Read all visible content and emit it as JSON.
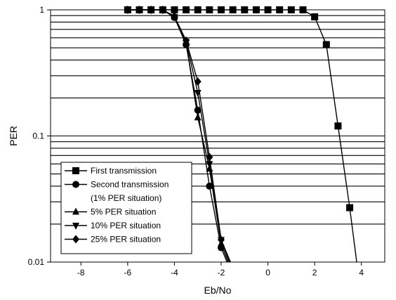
{
  "chart_data": {
    "type": "line",
    "xlabel": "Eb/No",
    "ylabel": "PER",
    "xlim": [
      -9.3,
      5
    ],
    "ylim": [
      0.01,
      1
    ],
    "yscale": "log",
    "xticks": [
      -8,
      -6,
      -4,
      -2,
      0,
      2,
      4
    ],
    "xtick_labels": [
      "-8",
      "-6",
      "-4",
      "-2",
      "0",
      "2",
      "4"
    ],
    "yticks": [
      0.01,
      0.1,
      1
    ],
    "ytick_labels": [
      "0.01",
      "0.1",
      "1"
    ],
    "grid": "horizontal, log minor",
    "legend": {
      "position": "bottom-left",
      "entries": [
        {
          "text": "First transmission",
          "marker": "square"
        },
        {
          "text": "Second transmission",
          "marker": "circle"
        },
        {
          "text": "(1% PER situation)",
          "marker": "none"
        },
        {
          "text": "5% PER situation",
          "marker": "triangle-up"
        },
        {
          "text": "10% PER situation",
          "marker": "triangle-down"
        },
        {
          "text": "25% PER situation",
          "marker": "diamond"
        }
      ]
    },
    "series": [
      {
        "name": "First transmission",
        "marker": "square",
        "x": [
          -6,
          -5.5,
          -5,
          -4.5,
          -4,
          -3.5,
          -3,
          -2.5,
          -2,
          -1.5,
          -1,
          -0.5,
          0,
          0.5,
          1,
          1.5,
          2,
          2.5,
          3,
          3.5,
          3.8
        ],
        "y": [
          1,
          1,
          1,
          1,
          1,
          1,
          1,
          1,
          1,
          1,
          1,
          1,
          1,
          1,
          1,
          1,
          0.88,
          0.53,
          0.12,
          0.027,
          0.01
        ]
      },
      {
        "name": "Second transmission (1% PER situation)",
        "marker": "circle",
        "x": [
          -6,
          -5.5,
          -5,
          -4.5,
          -4,
          -3.5,
          -3,
          -2.5,
          -2,
          -1.75
        ],
        "y": [
          1,
          1,
          1,
          1,
          0.87,
          0.53,
          0.16,
          0.04,
          0.013,
          0.01
        ]
      },
      {
        "name": "5% PER situation",
        "marker": "triangle-up",
        "x": [
          -6,
          -5.5,
          -5,
          -4.5,
          -4,
          -3.5,
          -3,
          -2.5,
          -2,
          -1.7
        ],
        "y": [
          1,
          1,
          1,
          1,
          0.88,
          0.55,
          0.14,
          0.055,
          0.014,
          0.01
        ]
      },
      {
        "name": "10% PER situation",
        "marker": "triangle-down",
        "x": [
          -6,
          -5.5,
          -5,
          -4.5,
          -4,
          -3.5,
          -3,
          -2.5,
          -2,
          -1.65
        ],
        "y": [
          1,
          1,
          1,
          1,
          0.88,
          0.56,
          0.22,
          0.06,
          0.015,
          0.01
        ]
      },
      {
        "name": "25% PER situation",
        "marker": "diamond",
        "x": [
          -6,
          -5.5,
          -5,
          -4.5,
          -4,
          -3.5,
          -3,
          -2.5,
          -2,
          -1.6
        ],
        "y": [
          1,
          1,
          1,
          1,
          0.89,
          0.57,
          0.27,
          0.068,
          0.015,
          0.01
        ]
      }
    ]
  }
}
